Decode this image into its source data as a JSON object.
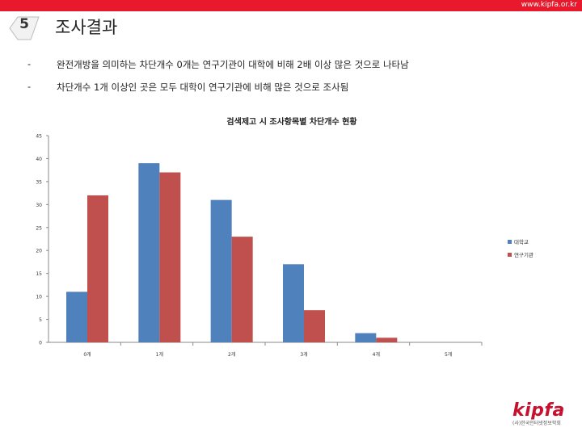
{
  "header": {
    "site": "www.kipfa.or.kr",
    "section_number": "5",
    "title": "조사결과"
  },
  "bullets": [
    {
      "dash": "-",
      "text": "완전개방을 의미하는 차단개수 0개는 연구기관이 대학에 비해 2배 이상 많은 것으로 나타남"
    },
    {
      "dash": "-",
      "text": "차단개수 1개 이상인 곳은 모두 대학이 연구기관에 비해 많은 것으로 조사됨"
    }
  ],
  "logo": {
    "word": "kipfa",
    "sub": "(사)한국인터넷정보학회"
  },
  "colors": {
    "brand": "#e8192c",
    "series1": "#4f81bd",
    "series2": "#c0504d"
  },
  "chart_data": {
    "type": "bar",
    "title": "검색제고 시 조사항목별 차단개수 현황",
    "categories": [
      "0개",
      "1개",
      "2개",
      "3개",
      "4개",
      "5개"
    ],
    "series": [
      {
        "name": "대학교",
        "values": [
          11,
          39,
          31,
          17,
          2,
          0
        ]
      },
      {
        "name": "연구기관",
        "values": [
          32,
          37,
          23,
          7,
          1,
          0
        ]
      }
    ],
    "ylim": [
      0,
      45
    ],
    "yticks": [
      0,
      5,
      10,
      15,
      20,
      25,
      30,
      35,
      40,
      45
    ],
    "grid": false,
    "legend": "right"
  }
}
